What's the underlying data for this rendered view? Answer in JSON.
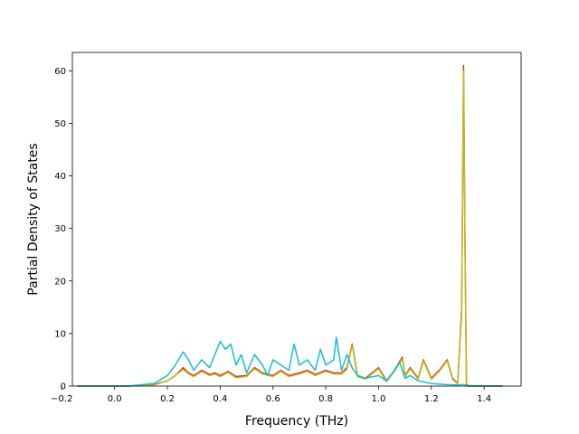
{
  "chart_data": {
    "type": "line",
    "xlabel": "Frequency (THz)",
    "ylabel": "Partial Density of States",
    "xlim": [
      -0.16,
      1.54
    ],
    "ylim": [
      0,
      63.5
    ],
    "xticks": [
      -0.2,
      0.0,
      0.2,
      0.4,
      0.6,
      0.8,
      1.0,
      1.2,
      1.4
    ],
    "xtick_labels": [
      "−0.2",
      "0.0",
      "0.2",
      "0.4",
      "0.6",
      "0.8",
      "1.0",
      "1.2",
      "1.4"
    ],
    "yticks": [
      0,
      10,
      20,
      30,
      40,
      50,
      60
    ],
    "ytick_labels": [
      "0",
      "10",
      "20",
      "30",
      "40",
      "50",
      "60"
    ],
    "grid": false,
    "series": [
      {
        "color": "#d62728",
        "x": [
          -0.14,
          0.05,
          0.15,
          0.2,
          0.23,
          0.26,
          0.28,
          0.3,
          0.33,
          0.36,
          0.38,
          0.4,
          0.43,
          0.46,
          0.5,
          0.53,
          0.56,
          0.6,
          0.63,
          0.66,
          0.7,
          0.73,
          0.76,
          0.8,
          0.83,
          0.86,
          0.88,
          0.9,
          0.92,
          0.95,
          1.0,
          1.03,
          1.06,
          1.09,
          1.1,
          1.12,
          1.15,
          1.17,
          1.2,
          1.23,
          1.26,
          1.28,
          1.3,
          1.315,
          1.322,
          1.327,
          1.333,
          1.34,
          1.4,
          1.47
        ],
        "y": [
          0,
          0,
          0.3,
          1,
          2,
          3.5,
          2.5,
          2,
          3,
          2.2,
          2.5,
          2,
          2.8,
          1.8,
          2,
          3.5,
          2.5,
          2,
          3,
          2,
          2.5,
          3,
          2.2,
          3,
          2.5,
          2.5,
          3.5,
          8,
          2,
          1.5,
          3.5,
          1,
          3,
          5.5,
          2,
          3.5,
          1.5,
          5,
          1.5,
          3,
          5,
          1.5,
          0.5,
          15,
          61,
          30,
          0.5,
          0,
          0,
          0
        ]
      },
      {
        "color": "#bcbd22",
        "x": [
          -0.14,
          0.05,
          0.15,
          0.2,
          0.23,
          0.26,
          0.28,
          0.3,
          0.33,
          0.36,
          0.38,
          0.4,
          0.43,
          0.46,
          0.5,
          0.53,
          0.56,
          0.6,
          0.63,
          0.66,
          0.7,
          0.73,
          0.76,
          0.8,
          0.83,
          0.86,
          0.88,
          0.9,
          0.92,
          0.95,
          1.0,
          1.03,
          1.06,
          1.09,
          1.1,
          1.12,
          1.15,
          1.17,
          1.2,
          1.23,
          1.26,
          1.28,
          1.3,
          1.315,
          1.322,
          1.327,
          1.333,
          1.34,
          1.4,
          1.47
        ],
        "y": [
          0,
          0,
          0.2,
          1,
          2,
          3.2,
          2.3,
          1.8,
          2.8,
          2,
          2.3,
          1.8,
          2.6,
          1.6,
          1.8,
          3.3,
          2.3,
          1.8,
          2.8,
          1.8,
          2.3,
          2.8,
          2,
          2.8,
          2.3,
          2.3,
          3.2,
          7.8,
          1.8,
          1.3,
          3.3,
          0.8,
          2.8,
          5.2,
          1.8,
          3.3,
          1.3,
          4.8,
          1.3,
          2.8,
          4.8,
          1.3,
          0.4,
          14,
          60,
          29,
          0.4,
          0,
          0,
          0
        ]
      },
      {
        "color": "#17becf",
        "x": [
          -0.14,
          0.05,
          0.15,
          0.2,
          0.23,
          0.26,
          0.28,
          0.3,
          0.33,
          0.36,
          0.38,
          0.4,
          0.42,
          0.44,
          0.46,
          0.48,
          0.5,
          0.53,
          0.56,
          0.58,
          0.6,
          0.63,
          0.66,
          0.68,
          0.7,
          0.73,
          0.76,
          0.78,
          0.8,
          0.83,
          0.84,
          0.86,
          0.88,
          0.9,
          0.92,
          0.95,
          1.0,
          1.03,
          1.06,
          1.08,
          1.1,
          1.12,
          1.15,
          1.2,
          1.25,
          1.3,
          1.32,
          1.34,
          1.4,
          1.47
        ],
        "y": [
          0,
          0,
          0.5,
          2,
          4,
          6.5,
          5,
          3,
          5,
          3.5,
          6,
          8.5,
          7,
          8,
          4,
          6,
          2.5,
          6,
          4,
          2,
          5,
          4,
          3,
          8,
          4,
          5,
          3,
          7,
          4,
          5,
          9.3,
          3,
          6,
          3.5,
          2,
          1.5,
          2,
          1,
          3,
          4.5,
          1.5,
          2,
          1,
          0.5,
          0.3,
          0.2,
          0.3,
          0.1,
          0,
          0
        ]
      }
    ]
  }
}
